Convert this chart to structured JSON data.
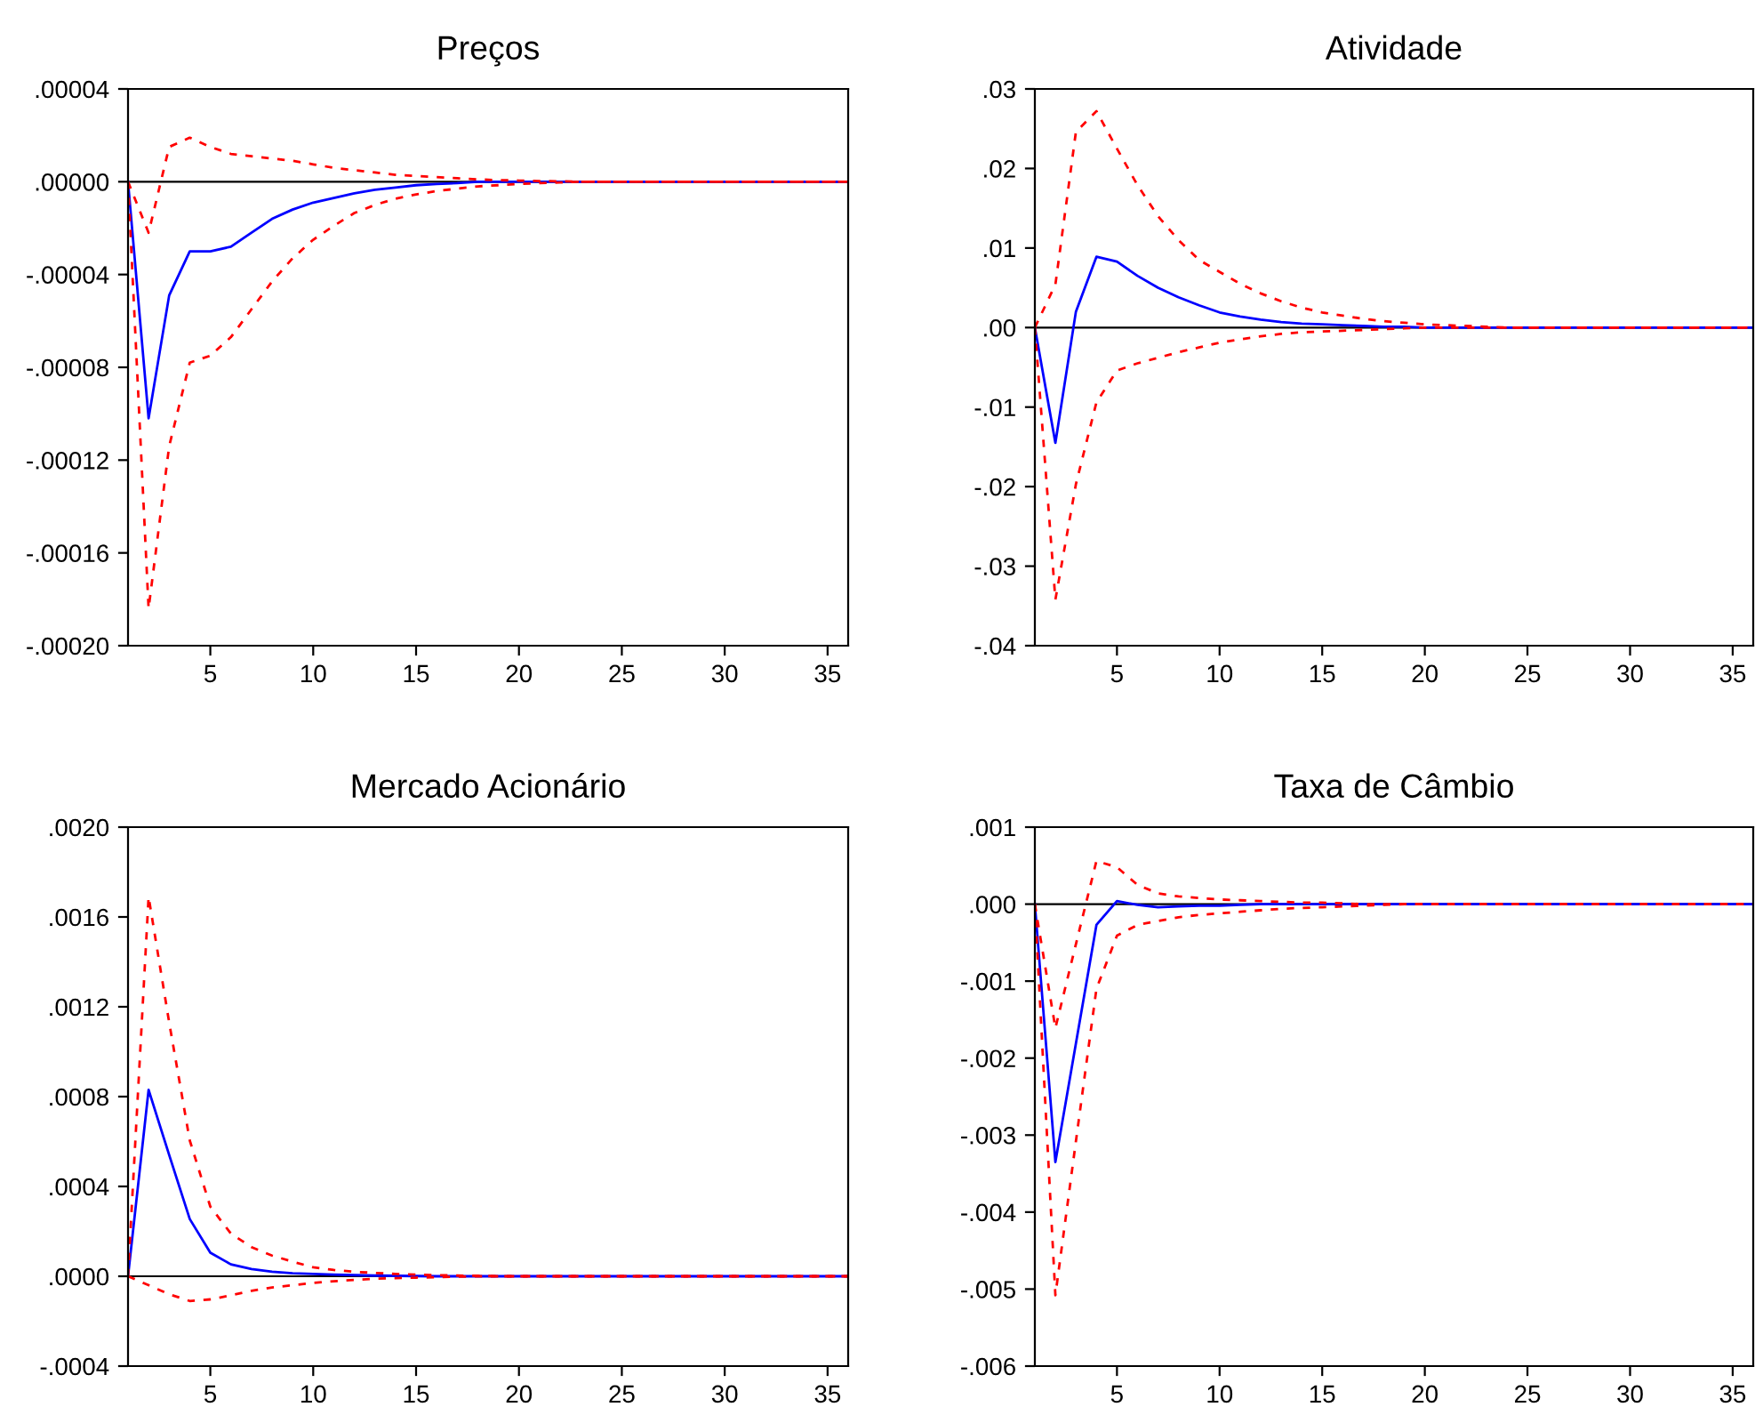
{
  "chart_data": [
    {
      "type": "line",
      "title": "Preços",
      "x": [
        1,
        2,
        3,
        4,
        5,
        6,
        7,
        8,
        9,
        10,
        11,
        12,
        13,
        14,
        15,
        16,
        17,
        18,
        19,
        20,
        21,
        22,
        23,
        24,
        25,
        26,
        27,
        28,
        29,
        30,
        31,
        32,
        33,
        34,
        35,
        36
      ],
      "xlim": [
        1,
        36
      ],
      "xticks": [
        5,
        10,
        15,
        20,
        25,
        30,
        35
      ],
      "ylim": [
        -0.0002,
        4e-05
      ],
      "yticks": [
        {
          "value": -0.0002,
          "label": "-.00020"
        },
        {
          "value": -0.00016,
          "label": "-.00016"
        },
        {
          "value": -0.00012,
          "label": "-.00012"
        },
        {
          "value": -8e-05,
          "label": "-.00008"
        },
        {
          "value": -4e-05,
          "label": "-.00004"
        },
        {
          "value": 0,
          "label": ".00000"
        },
        {
          "value": 4e-05,
          "label": ".00004"
        }
      ],
      "ref_lines": [
        {
          "axis": "y",
          "value": 0,
          "color": "#000000"
        }
      ],
      "grid": false,
      "legend": false,
      "series": [
        {
          "color": "#0000ff",
          "line_style": "solid",
          "values": [
            0,
            -0.000102,
            -4.9e-05,
            -3e-05,
            -3e-05,
            -2.8e-05,
            -2.2e-05,
            -1.6e-05,
            -1.2e-05,
            -9e-06,
            -7e-06,
            -5e-06,
            -3.5e-06,
            -2.5e-06,
            -1.5e-06,
            -1e-06,
            -6e-07,
            0,
            0,
            0,
            0,
            0,
            0,
            0,
            0,
            0,
            0,
            0,
            0,
            0,
            0,
            0,
            0,
            0,
            0,
            0
          ]
        },
        {
          "color": "#ff0000",
          "line_style": "dashed",
          "values": [
            0,
            -2.2e-05,
            1.5e-05,
            1.9e-05,
            1.5e-05,
            1.2e-05,
            1.1e-05,
            1e-05,
            9e-06,
            7.5e-06,
            6e-06,
            5e-06,
            4e-06,
            3e-06,
            2.5e-06,
            2e-06,
            1.5e-06,
            1e-06,
            7e-07,
            5e-07,
            3e-07,
            2e-07,
            0,
            0,
            0,
            0,
            0,
            0,
            0,
            0,
            0,
            0,
            0,
            0,
            0,
            0
          ]
        },
        {
          "color": "#ff0000",
          "line_style": "dashed",
          "values": [
            0,
            -0.000184,
            -0.000114,
            -7.8e-05,
            -7.5e-05,
            -6.7e-05,
            -5.5e-05,
            -4.3e-05,
            -3.3e-05,
            -2.5e-05,
            -1.9e-05,
            -1.35e-05,
            -1e-05,
            -7.3e-06,
            -5.5e-06,
            -4e-06,
            -3e-06,
            -2e-06,
            -1.5e-06,
            -1e-06,
            -6e-07,
            -3e-07,
            0,
            0,
            0,
            0,
            0,
            0,
            0,
            0,
            0,
            0,
            0,
            0,
            0,
            0
          ]
        }
      ]
    },
    {
      "type": "line",
      "title": "Atividade",
      "x": [
        1,
        2,
        3,
        4,
        5,
        6,
        7,
        8,
        9,
        10,
        11,
        12,
        13,
        14,
        15,
        16,
        17,
        18,
        19,
        20,
        21,
        22,
        23,
        24,
        25,
        26,
        27,
        28,
        29,
        30,
        31,
        32,
        33,
        34,
        35,
        36
      ],
      "xlim": [
        1,
        36
      ],
      "xticks": [
        5,
        10,
        15,
        20,
        25,
        30,
        35
      ],
      "ylim": [
        -0.04,
        0.03
      ],
      "yticks": [
        {
          "value": -0.04,
          "label": "-.04"
        },
        {
          "value": -0.03,
          "label": "-.03"
        },
        {
          "value": -0.02,
          "label": "-.02"
        },
        {
          "value": -0.01,
          "label": "-.01"
        },
        {
          "value": 0,
          "label": ".00"
        },
        {
          "value": 0.01,
          "label": ".01"
        },
        {
          "value": 0.02,
          "label": ".02"
        },
        {
          "value": 0.03,
          "label": ".03"
        }
      ],
      "ref_lines": [
        {
          "axis": "y",
          "value": 0,
          "color": "#000000"
        }
      ],
      "grid": false,
      "legend": false,
      "series": [
        {
          "color": "#0000ff",
          "line_style": "solid",
          "values": [
            0,
            -0.0145,
            0.002,
            0.0089,
            0.0083,
            0.0065,
            0.005,
            0.0038,
            0.0028,
            0.0019,
            0.0014,
            0.001,
            0.0007,
            0.0005,
            0.0004,
            0.0003,
            0.0002,
            0.0001,
            0.0001,
            0,
            0,
            0,
            0,
            0,
            0,
            0,
            0,
            0,
            0,
            0,
            0,
            0,
            0,
            0,
            0,
            0
          ]
        },
        {
          "color": "#ff0000",
          "line_style": "dashed",
          "values": [
            0,
            0.0054,
            0.0246,
            0.0272,
            0.0225,
            0.0179,
            0.014,
            0.011,
            0.0085,
            0.007,
            0.0055,
            0.0043,
            0.0033,
            0.0025,
            0.0019,
            0.0015,
            0.0011,
            0.0008,
            0.0006,
            0.0004,
            0.0003,
            0.0002,
            0.0001,
            0,
            0,
            0,
            0,
            0,
            0,
            0,
            0,
            0,
            0,
            0,
            0,
            0
          ]
        },
        {
          "color": "#ff0000",
          "line_style": "dashed",
          "values": [
            0,
            -0.0342,
            -0.0197,
            -0.0094,
            -0.0054,
            -0.0045,
            -0.0038,
            -0.0031,
            -0.0025,
            -0.0019,
            -0.0015,
            -0.0011,
            -0.0008,
            -0.0006,
            -0.0005,
            -0.0004,
            -0.0003,
            -0.0002,
            -0.0001,
            0,
            0,
            0,
            0,
            0,
            0,
            0,
            0,
            0,
            0,
            0,
            0,
            0,
            0,
            0,
            0,
            0
          ]
        }
      ]
    },
    {
      "type": "line",
      "title": "Mercado Acionário",
      "x": [
        1,
        2,
        3,
        4,
        5,
        6,
        7,
        8,
        9,
        10,
        11,
        12,
        13,
        14,
        15,
        16,
        17,
        18,
        19,
        20,
        21,
        22,
        23,
        24,
        25,
        26,
        27,
        28,
        29,
        30,
        31,
        32,
        33,
        34,
        35,
        36
      ],
      "xlim": [
        1,
        36
      ],
      "xticks": [
        5,
        10,
        15,
        20,
        25,
        30,
        35
      ],
      "ylim": [
        -0.0004,
        0.002
      ],
      "yticks": [
        {
          "value": -0.0004,
          "label": "-.0004"
        },
        {
          "value": 0,
          "label": ".0000"
        },
        {
          "value": 0.0004,
          "label": ".0004"
        },
        {
          "value": 0.0008,
          "label": ".0008"
        },
        {
          "value": 0.0012,
          "label": ".0012"
        },
        {
          "value": 0.0016,
          "label": ".0016"
        },
        {
          "value": 0.002,
          "label": ".0020"
        }
      ],
      "ref_lines": [
        {
          "axis": "y",
          "value": 0,
          "color": "#000000"
        }
      ],
      "grid": false,
      "legend": false,
      "series": [
        {
          "color": "#0000ff",
          "line_style": "solid",
          "values": [
            0,
            0.00083,
            0.00054,
            0.000255,
            0.000105,
            5.3e-05,
            3.2e-05,
            2e-05,
            1.3e-05,
            1e-05,
            7e-06,
            5e-06,
            3e-06,
            2e-06,
            1e-06,
            0,
            0,
            0,
            0,
            0,
            0,
            0,
            0,
            0,
            0,
            0,
            0,
            0,
            0,
            0,
            0,
            0,
            0,
            0,
            0,
            0
          ]
        },
        {
          "color": "#ff0000",
          "line_style": "dashed",
          "values": [
            0,
            0.00169,
            0.00113,
            0.000605,
            0.00031,
            0.00019,
            0.00013,
            9.2e-05,
            6.5e-05,
            4e-05,
            2.8e-05,
            2e-05,
            1.5e-05,
            1e-05,
            7e-06,
            5e-06,
            3e-06,
            2e-06,
            0,
            0,
            0,
            0,
            0,
            0,
            0,
            0,
            0,
            0,
            0,
            0,
            0,
            0,
            0,
            0,
            0,
            0
          ]
        },
        {
          "color": "#ff0000",
          "line_style": "dashed",
          "values": [
            0,
            -4e-05,
            -8e-05,
            -0.00011,
            -0.000103,
            -8.5e-05,
            -6.5e-05,
            -5e-05,
            -4e-05,
            -3e-05,
            -2.2e-05,
            -1.6e-05,
            -1.1e-05,
            -8e-06,
            -6e-06,
            -4e-06,
            -2e-06,
            0,
            0,
            0,
            0,
            0,
            0,
            0,
            0,
            0,
            0,
            0,
            0,
            0,
            0,
            0,
            0,
            0,
            0,
            0
          ]
        }
      ]
    },
    {
      "type": "line",
      "title": "Taxa de Câmbio",
      "x": [
        1,
        2,
        3,
        4,
        5,
        6,
        7,
        8,
        9,
        10,
        11,
        12,
        13,
        14,
        15,
        16,
        17,
        18,
        19,
        20,
        21,
        22,
        23,
        24,
        25,
        26,
        27,
        28,
        29,
        30,
        31,
        32,
        33,
        34,
        35,
        36
      ],
      "xlim": [
        1,
        36
      ],
      "xticks": [
        5,
        10,
        15,
        20,
        25,
        30,
        35
      ],
      "ylim": [
        -0.006,
        0.001
      ],
      "yticks": [
        {
          "value": -0.006,
          "label": "-.006"
        },
        {
          "value": -0.005,
          "label": "-.005"
        },
        {
          "value": -0.004,
          "label": "-.004"
        },
        {
          "value": -0.003,
          "label": "-.003"
        },
        {
          "value": -0.002,
          "label": "-.002"
        },
        {
          "value": -0.001,
          "label": "-.001"
        },
        {
          "value": 0,
          "label": ".000"
        },
        {
          "value": 0.001,
          "label": ".001"
        }
      ],
      "ref_lines": [
        {
          "axis": "y",
          "value": 0,
          "color": "#000000"
        }
      ],
      "grid": false,
      "legend": false,
      "series": [
        {
          "color": "#0000ff",
          "line_style": "solid",
          "values": [
            0,
            -0.00335,
            -0.00181,
            -0.00027,
            4e-05,
            -1e-05,
            -4e-05,
            -3e-05,
            -2e-05,
            -2e-05,
            -1e-05,
            0,
            0,
            0,
            0,
            0,
            0,
            0,
            0,
            0,
            0,
            0,
            0,
            0,
            0,
            0,
            0,
            0,
            0,
            0,
            0,
            0,
            0,
            0,
            0,
            0
          ]
        },
        {
          "color": "#ff0000",
          "line_style": "dashed",
          "values": [
            0,
            -0.00161,
            -0.00052,
            0.00056,
            0.00048,
            0.00025,
            0.00014,
            0.0001,
            8e-05,
            6e-05,
            5e-05,
            4e-05,
            3e-05,
            2e-05,
            2e-05,
            1e-05,
            0,
            0,
            0,
            0,
            0,
            0,
            0,
            0,
            0,
            0,
            0,
            0,
            0,
            0,
            0,
            0,
            0,
            0,
            0,
            0
          ]
        },
        {
          "color": "#ff0000",
          "line_style": "dashed",
          "values": [
            0,
            -0.00508,
            -0.00308,
            -0.0011,
            -0.00041,
            -0.00027,
            -0.00022,
            -0.00017,
            -0.00014,
            -0.00012,
            -0.0001,
            -8e-05,
            -6e-05,
            -5e-05,
            -4e-05,
            -3e-05,
            -2e-05,
            -1e-05,
            0,
            0,
            0,
            0,
            0,
            0,
            0,
            0,
            0,
            0,
            0,
            0,
            0,
            0,
            0,
            0,
            0,
            0
          ]
        }
      ]
    }
  ]
}
